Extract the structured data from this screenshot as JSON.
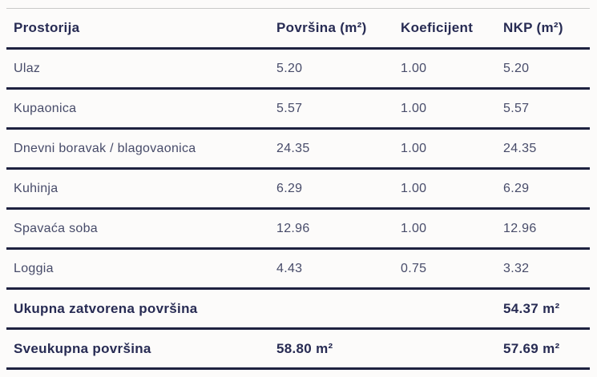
{
  "table": {
    "columns": [
      "Prostorija",
      "Površina (m²)",
      "Koeficijent",
      "NKP (m²)"
    ],
    "rows": [
      {
        "name": "Ulaz",
        "area": "5.20",
        "coef": "1.00",
        "nkp": "5.20"
      },
      {
        "name": "Kupaonica",
        "area": "5.57",
        "coef": "1.00",
        "nkp": "5.57"
      },
      {
        "name": "Dnevni boravak / blagovaonica",
        "area": "24.35",
        "coef": "1.00",
        "nkp": "24.35"
      },
      {
        "name": "Kuhinja",
        "area": "6.29",
        "coef": "1.00",
        "nkp": "6.29"
      },
      {
        "name": "Spavaća soba",
        "area": "12.96",
        "coef": "1.00",
        "nkp": "12.96"
      },
      {
        "name": "Loggia",
        "area": "4.43",
        "coef": "0.75",
        "nkp": "3.32"
      }
    ],
    "totals": [
      {
        "name": "Ukupna zatvorena površina",
        "area": "",
        "coef": "",
        "nkp": "54.37 m²"
      },
      {
        "name": "Sveukupna površina",
        "area": "58.80 m²",
        "coef": "",
        "nkp": "57.69 m²"
      }
    ]
  },
  "colors": {
    "background": "#fcfbfa",
    "heading_text": "#272b53",
    "data_text": "#474b69",
    "rule_dark": "#1e2240",
    "rule_light": "#c9c9c9"
  }
}
